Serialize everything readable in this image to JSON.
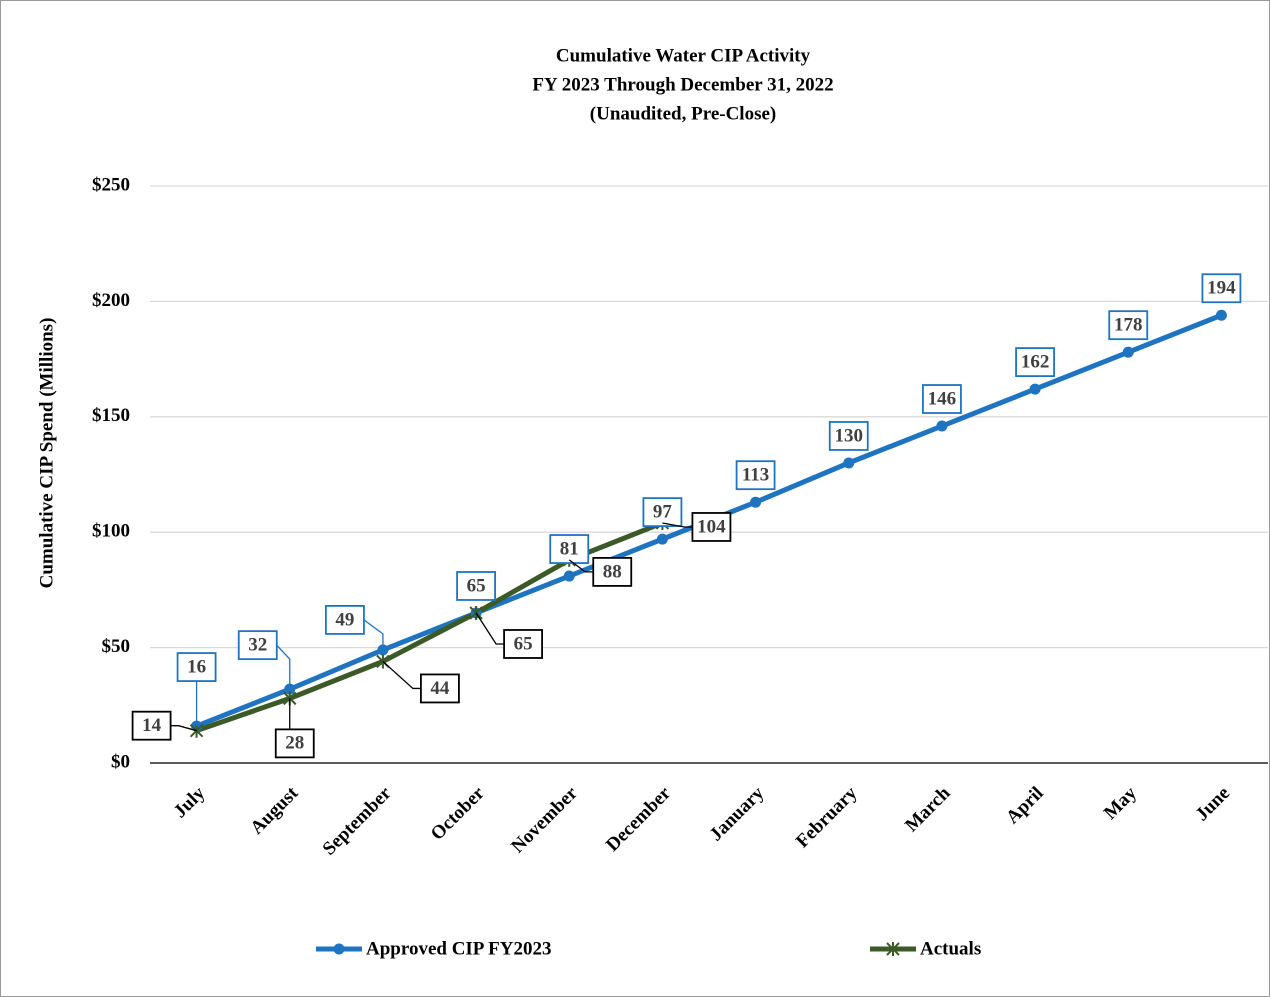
{
  "chart_data": {
    "type": "line",
    "title": [
      "Cumulative Water CIP Activity",
      "FY 2023 Through December 31, 2022",
      "(Unaudited, Pre-Close)"
    ],
    "y_label": "Cumulative CIP Spend (Millions)",
    "categories": [
      "July",
      "August",
      "September",
      "October",
      "November",
      "December",
      "January",
      "February",
      "March",
      "April",
      "May",
      "June"
    ],
    "series": [
      {
        "name": "Approved CIP FY2023",
        "color": "#1f74c2",
        "marker": "circle",
        "values": [
          16,
          32,
          49,
          65,
          81,
          97,
          113,
          130,
          146,
          162,
          178,
          194
        ]
      },
      {
        "name": "Actuals",
        "color": "#3b5a28",
        "marker": "star",
        "values": [
          14,
          28,
          44,
          65,
          88,
          104,
          null,
          null,
          null,
          null,
          null,
          null
        ]
      }
    ],
    "ylim": [
      0,
      250
    ],
    "yticks": [
      {
        "value": 0,
        "label": "$0"
      },
      {
        "value": 50,
        "label": "$50"
      },
      {
        "value": 100,
        "label": "$100"
      },
      {
        "value": 150,
        "label": "$150"
      },
      {
        "value": 200,
        "label": "$200"
      },
      {
        "value": 250,
        "label": "$250"
      }
    ],
    "grid": true,
    "legend": "bottom"
  }
}
